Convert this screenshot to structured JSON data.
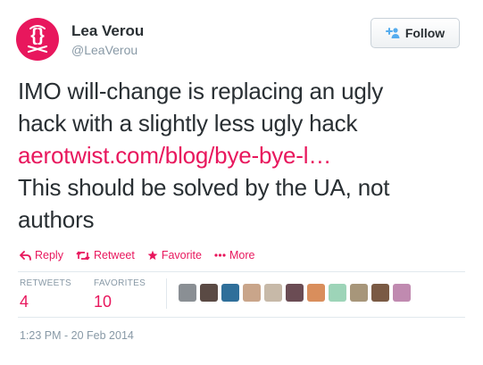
{
  "author": {
    "name": "Lea Verou",
    "handle": "@LeaVerou",
    "avatar_icon": "curly-braces-logo-icon",
    "avatar_color": "#e8175d"
  },
  "follow_button": {
    "label": "Follow",
    "icon": "add-user-icon"
  },
  "tweet": {
    "lines": [
      "IMO will-change is replacing an ugly",
      "hack with a slightly less ugly hack"
    ],
    "link_text": "aerotwist.com/blog/bye-bye-l…",
    "lines_after": [
      "This should be solved by the UA, not",
      "authors"
    ]
  },
  "actions": [
    {
      "label": "Reply",
      "icon": "reply-icon"
    },
    {
      "label": "Retweet",
      "icon": "retweet-icon"
    },
    {
      "label": "Favorite",
      "icon": "star-icon"
    },
    {
      "label": "More",
      "icon": "more-dots-icon"
    }
  ],
  "stats": {
    "retweets_label": "RETWEETS",
    "retweets_value": "4",
    "favorites_label": "FAVORITES",
    "favorites_value": "10"
  },
  "favoriter_avatar_colors": [
    "#8a8f94",
    "#5a4a44",
    "#2f6f9a",
    "#c9a58a",
    "#c7b9a8",
    "#6b4c54",
    "#d98e5c",
    "#9dd4b8",
    "#a7967a",
    "#7a5a44",
    "#c08ab0"
  ],
  "timestamp": "1:23 PM - 20 Feb 2014",
  "colors": {
    "accent": "#e8175d",
    "text": "#292f33",
    "muted": "#8899a6"
  }
}
